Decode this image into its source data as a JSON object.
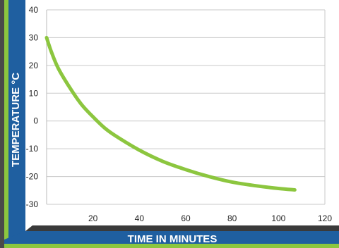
{
  "chart_data": {
    "type": "line",
    "title": "",
    "xlabel": "TIME IN MINUTES",
    "ylabel": "TEMPERATURE °C",
    "xlim": [
      0,
      120
    ],
    "ylim": [
      -30,
      40
    ],
    "x_ticks": [
      "20",
      "40",
      "60",
      "80",
      "100",
      "120"
    ],
    "y_ticks": [
      "40",
      "30",
      "20",
      "10",
      "0",
      "-10",
      "-20",
      "-30"
    ],
    "grid": "horizontal",
    "legend": "none",
    "series": [
      {
        "color": "#8cc63f",
        "x": [
          0,
          2,
          5,
          10,
          15,
          20,
          25,
          30,
          40,
          50,
          60,
          70,
          80,
          90,
          100,
          107
        ],
        "y": [
          30,
          25,
          19,
          12,
          6,
          1.5,
          -2.5,
          -5.5,
          -10.5,
          -14.5,
          -17.5,
          -20,
          -22,
          -23.3,
          -24.3,
          -24.8
        ]
      }
    ]
  },
  "colors": {
    "line": "#8cc63f",
    "label_band": "#1f5fa0",
    "accent_green": "#8cc63f",
    "frame_dark": "#4a4a4a",
    "grid": "#c9c9c9"
  }
}
